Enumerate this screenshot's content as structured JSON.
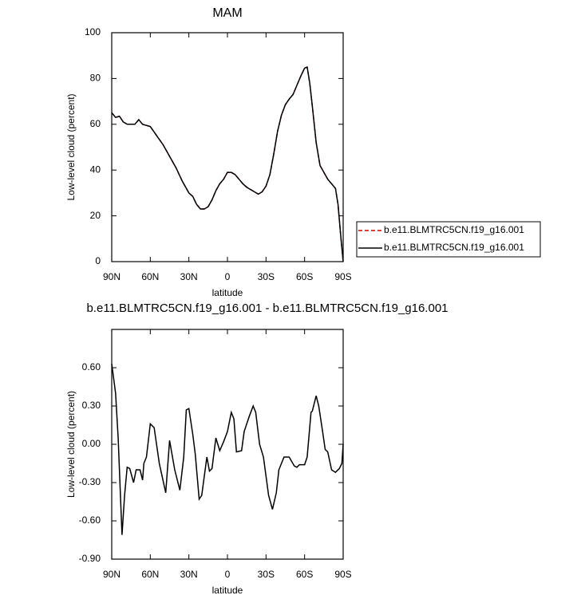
{
  "chart_data": [
    {
      "type": "line",
      "title": "MAM",
      "x_label": "latitude",
      "y_label": "Low-level cloud (percent)",
      "x": [
        90,
        87,
        84,
        81,
        78,
        72,
        69,
        66,
        60,
        55,
        50,
        45,
        40,
        35,
        30,
        27,
        24,
        21,
        18,
        15,
        12,
        9,
        6,
        3,
        0,
        -3,
        -6,
        -9,
        -12,
        -15,
        -18,
        -21,
        -24,
        -27,
        -30,
        -33,
        -36,
        -39,
        -42,
        -45,
        -48,
        -51,
        -54,
        -57,
        -60,
        -62,
        -64,
        -66,
        -69,
        -72,
        -75,
        -78,
        -81,
        -84,
        -86,
        -88,
        -90
      ],
      "series": [
        {
          "name": "b.e11.BLMTRC5CN.f19_g16.001",
          "color": "#cc0000",
          "linestyle": "dashed",
          "values": [
            65,
            63,
            63.5,
            61,
            60,
            60,
            62,
            60,
            59,
            55,
            51,
            46,
            41,
            35,
            30,
            28.5,
            25,
            23,
            23,
            24,
            27,
            31,
            34,
            36,
            39,
            39,
            38,
            36,
            34,
            32.5,
            31.5,
            30.5,
            29.5,
            30.5,
            33,
            38,
            47,
            57,
            64,
            68.5,
            71,
            73,
            77,
            81,
            84.5,
            85,
            78,
            68,
            52,
            42,
            39,
            36,
            34,
            32,
            25,
            12,
            0
          ]
        },
        {
          "name": "b.e11.BLMTRC5CN.f19_g16.001",
          "color": "#000000",
          "linestyle": "solid",
          "values": [
            65,
            63,
            63.5,
            61,
            60,
            60,
            62,
            60,
            59,
            55,
            51,
            46,
            41,
            35,
            30,
            28.5,
            25,
            23,
            23,
            24,
            27,
            31,
            34,
            36,
            39,
            39,
            38,
            36,
            34,
            32.5,
            31.5,
            30.5,
            29.5,
            30.5,
            33,
            38,
            47,
            57,
            64,
            68.5,
            71,
            73,
            77,
            81,
            84.5,
            85,
            78,
            68,
            52,
            42,
            39,
            36,
            34,
            32,
            25,
            12,
            0
          ]
        }
      ],
      "xlim": [
        90,
        -90
      ],
      "xticks": [
        {
          "value": 90,
          "label": "90N"
        },
        {
          "value": 60,
          "label": "60N"
        },
        {
          "value": 30,
          "label": "30N"
        },
        0,
        {
          "value": -30,
          "label": "30S"
        },
        {
          "value": -60,
          "label": "60S"
        },
        {
          "value": -90,
          "label": "90S"
        }
      ],
      "ylim": [
        0,
        100
      ],
      "yticks": [
        0,
        20,
        40,
        60,
        80,
        100
      ],
      "legend": "right"
    },
    {
      "type": "line",
      "title": "b.e11.BLMTRC5CN.f19_g16.001 - b.e11.BLMTRC5CN.f19_g16.001",
      "x_label": "latitude",
      "y_label": "Low-level cloud (percent)",
      "x": [
        90,
        87,
        85,
        82,
        80,
        78,
        76,
        73,
        71,
        68,
        66,
        65,
        63,
        60,
        57,
        53,
        48,
        45,
        41,
        37,
        34,
        32,
        30,
        27,
        25,
        22,
        20,
        16,
        14,
        12,
        9,
        6,
        3,
        0,
        -3,
        -5,
        -7,
        -11,
        -13,
        -17,
        -20,
        -22,
        -25,
        -28,
        -32,
        -35,
        -38,
        -40,
        -44,
        -48,
        -52,
        -54,
        -56,
        -60,
        -62,
        -65,
        -66,
        -69,
        -71,
        -74,
        -76,
        -78,
        -81,
        -84,
        -87,
        -89,
        -90
      ],
      "series": [
        {
          "color": "#000000",
          "linestyle": "solid",
          "values": [
            0.63,
            0.4,
            0.05,
            -0.71,
            -0.4,
            -0.18,
            -0.19,
            -0.3,
            -0.2,
            -0.2,
            -0.28,
            -0.15,
            -0.1,
            0.16,
            0.13,
            -0.15,
            -0.38,
            0.03,
            -0.2,
            -0.36,
            -0.1,
            0.27,
            0.28,
            0.08,
            -0.08,
            -0.43,
            -0.4,
            -0.1,
            -0.21,
            -0.19,
            0.05,
            -0.05,
            0.02,
            0.1,
            0.25,
            0.2,
            -0.06,
            -0.05,
            0.1,
            0.22,
            0.3,
            0.25,
            0.0,
            -0.1,
            -0.4,
            -0.51,
            -0.38,
            -0.2,
            -0.1,
            -0.1,
            -0.17,
            -0.18,
            -0.16,
            -0.16,
            -0.1,
            0.25,
            0.26,
            0.38,
            0.3,
            0.1,
            -0.04,
            -0.06,
            -0.2,
            -0.22,
            -0.19,
            -0.15,
            0.0
          ]
        }
      ],
      "xlim": [
        90,
        -90
      ],
      "xticks": [
        {
          "value": 90,
          "label": "90N"
        },
        {
          "value": 60,
          "label": "60N"
        },
        {
          "value": 30,
          "label": "30N"
        },
        0,
        {
          "value": -30,
          "label": "30S"
        },
        {
          "value": -60,
          "label": "60S"
        },
        {
          "value": -90,
          "label": "90S"
        }
      ],
      "ylim": [
        -0.9,
        0.9
      ],
      "yticks": [
        {
          "value": -0.9,
          "label": "-0.90"
        },
        {
          "value": -0.6,
          "label": "-0.60"
        },
        {
          "value": -0.3,
          "label": "-0.30"
        },
        {
          "value": 0,
          "label": "0.00"
        },
        {
          "value": 0.3,
          "label": "0.30"
        },
        {
          "value": 0.6,
          "label": "0.60"
        }
      ]
    }
  ]
}
